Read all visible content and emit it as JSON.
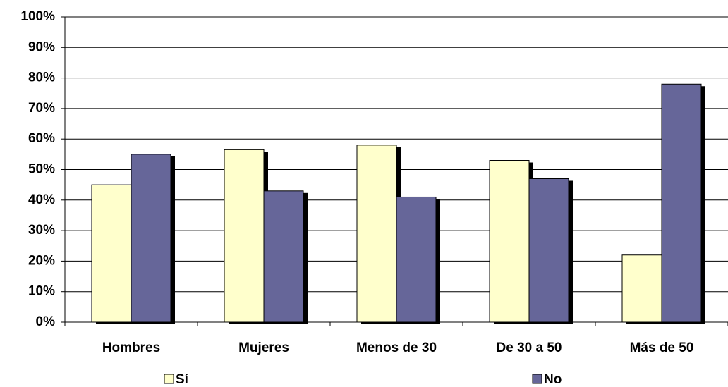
{
  "chart_data": {
    "type": "bar",
    "categories": [
      "Hombres",
      "Mujeres",
      "Menos de 30",
      "De 30 a 50",
      "Más de 50"
    ],
    "series": [
      {
        "name": "Sí",
        "color": "#ffffcc",
        "values": [
          45,
          56.5,
          58,
          53,
          22
        ]
      },
      {
        "name": "No",
        "color": "#666699",
        "values": [
          55,
          43,
          41,
          47,
          78
        ]
      }
    ],
    "ylim": [
      0,
      100
    ],
    "yticks": [
      {
        "value": 0,
        "label": "0%"
      },
      {
        "value": 10,
        "label": "10%"
      },
      {
        "value": 20,
        "label": "20%"
      },
      {
        "value": 30,
        "label": "30%"
      },
      {
        "value": 40,
        "label": "40%"
      },
      {
        "value": 50,
        "label": "50%"
      },
      {
        "value": 60,
        "label": "60%"
      },
      {
        "value": 70,
        "label": "70%"
      },
      {
        "value": 80,
        "label": "80%"
      },
      {
        "value": 90,
        "label": "90%"
      },
      {
        "value": 100,
        "label": "100%"
      }
    ],
    "grid": true,
    "legend": "bottom"
  }
}
